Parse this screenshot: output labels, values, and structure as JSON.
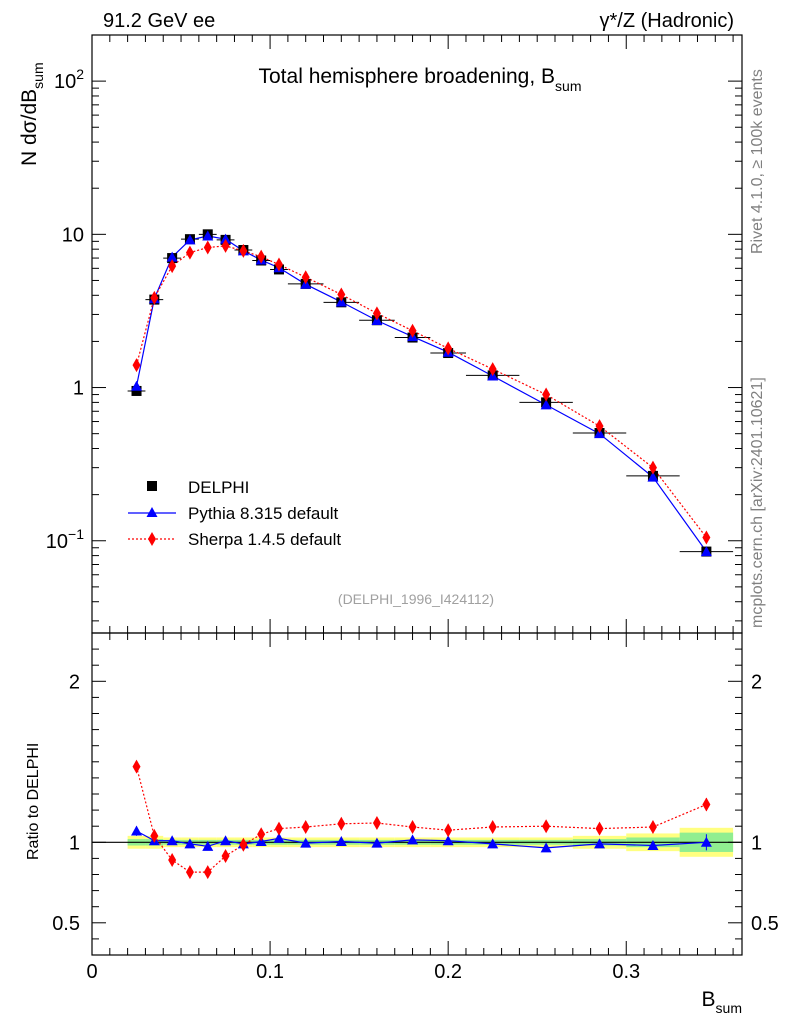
{
  "header": {
    "energy_label": "91.2 GeV ee",
    "process_label": "γ*/Z (Hadronic)"
  },
  "side_labels": {
    "rivet": "Rivet 4.1.0, ≥ 100k events",
    "source": "mcplots.cern.ch [arXiv:2401.10621]"
  },
  "colors": {
    "data": "#000000",
    "pythia": "#0000ff",
    "sherpa": "#ff0000",
    "band_inner": "#90ee90",
    "band_outer": "#ffff80"
  },
  "chart_data": [
    {
      "type": "scatter",
      "scale": "log",
      "title": "Total hemisphere broadening, B",
      "title_subscript": "sum",
      "ylabel": "N  dσ/dB",
      "ylabel_subscript": "sum",
      "analysis_id": "(DELPHI_1996_I424112)",
      "xlim": [
        0,
        0.365
      ],
      "ylim": [
        0.025,
        200
      ],
      "y_ticks": [
        {
          "value": 100,
          "label": "10",
          "sup": "2"
        },
        {
          "value": 10,
          "label": "10",
          "sup": ""
        },
        {
          "value": 1,
          "label": "1",
          "sup": ""
        },
        {
          "value": 0.1,
          "label": "10",
          "sup": "−1"
        }
      ],
      "legend": [
        "DELPHI",
        "Pythia 8.315 default",
        "Sherpa 1.4.5 default"
      ],
      "x": [
        0.025,
        0.035,
        0.045,
        0.055,
        0.065,
        0.075,
        0.085,
        0.095,
        0.105,
        0.12,
        0.14,
        0.16,
        0.18,
        0.2,
        0.225,
        0.255,
        0.285,
        0.315,
        0.345
      ],
      "xerr": [
        0.005,
        0.005,
        0.005,
        0.005,
        0.005,
        0.005,
        0.005,
        0.005,
        0.005,
        0.01,
        0.01,
        0.01,
        0.01,
        0.01,
        0.015,
        0.015,
        0.015,
        0.015,
        0.015
      ],
      "series": [
        {
          "name": "DELPHI",
          "marker": "square",
          "values": [
            0.95,
            3.75,
            7.0,
            9.3,
            10.0,
            9.2,
            7.9,
            6.75,
            5.9,
            4.75,
            3.6,
            2.75,
            2.12,
            1.68,
            1.2,
            0.8,
            0.505,
            0.265,
            0.085
          ]
        },
        {
          "name": "Pythia 8.315 default",
          "marker": "triangle",
          "values": [
            1.02,
            3.8,
            7.1,
            9.2,
            9.75,
            9.3,
            7.8,
            6.8,
            6.05,
            4.72,
            3.62,
            2.74,
            2.15,
            1.7,
            1.19,
            0.77,
            0.5,
            0.26,
            0.085
          ]
        },
        {
          "name": "Sherpa 1.4.5 default",
          "marker": "diamond",
          "values": [
            1.4,
            3.85,
            6.2,
            7.6,
            8.2,
            8.4,
            7.8,
            7.15,
            6.35,
            5.25,
            4.05,
            3.05,
            2.35,
            1.8,
            1.32,
            0.9,
            0.56,
            0.3,
            0.105
          ]
        }
      ]
    },
    {
      "type": "scatter",
      "scale": "linear",
      "ylabel": "Ratio to DELPHI",
      "xlabel": "B",
      "xlabel_subscript": "sum",
      "xlim": [
        0,
        0.365
      ],
      "ylim": [
        0.3,
        2.3
      ],
      "reference": 1,
      "y_ticks": [
        {
          "value": 2,
          "label": "2"
        },
        {
          "value": 1,
          "label": "1"
        },
        {
          "value": 0.5,
          "label": "0.5"
        }
      ],
      "x_ticks": [
        {
          "value": 0,
          "label": "0"
        },
        {
          "value": 0.1,
          "label": "0.1"
        },
        {
          "value": 0.2,
          "label": "0.2"
        },
        {
          "value": 0.3,
          "label": "0.3"
        }
      ],
      "x": [
        0.025,
        0.035,
        0.045,
        0.055,
        0.065,
        0.075,
        0.085,
        0.095,
        0.105,
        0.12,
        0.14,
        0.16,
        0.18,
        0.2,
        0.225,
        0.255,
        0.285,
        0.315,
        0.345
      ],
      "band_inner": [
        0.02,
        0.02,
        0.015,
        0.015,
        0.015,
        0.015,
        0.015,
        0.015,
        0.015,
        0.015,
        0.015,
        0.015,
        0.015,
        0.015,
        0.015,
        0.015,
        0.02,
        0.03,
        0.06
      ],
      "band_outer": [
        0.04,
        0.04,
        0.03,
        0.03,
        0.03,
        0.03,
        0.03,
        0.03,
        0.03,
        0.03,
        0.03,
        0.03,
        0.03,
        0.03,
        0.03,
        0.03,
        0.04,
        0.055,
        0.09
      ],
      "series": [
        {
          "name": "Pythia 8.315 default",
          "marker": "triangle",
          "values": [
            1.07,
            1.01,
            1.01,
            0.99,
            0.975,
            1.01,
            0.99,
            1.005,
            1.025,
            0.995,
            1.005,
            0.995,
            1.015,
            1.01,
            0.99,
            0.965,
            0.99,
            0.98,
            1.0
          ],
          "errors": [
            0.03,
            0.01,
            0.01,
            0.01,
            0.01,
            0.01,
            0.01,
            0.01,
            0.01,
            0.01,
            0.01,
            0.01,
            0.01,
            0.01,
            0.01,
            0.01,
            0.015,
            0.025,
            0.05
          ]
        },
        {
          "name": "Sherpa 1.4.5 default",
          "marker": "diamond",
          "values": [
            1.47,
            1.04,
            0.89,
            0.815,
            0.815,
            0.915,
            0.985,
            1.05,
            1.085,
            1.095,
            1.115,
            1.12,
            1.095,
            1.075,
            1.095,
            1.1,
            1.085,
            1.095,
            1.235
          ],
          "errors": [
            0.02,
            0.01,
            0.01,
            0.01,
            0.01,
            0.01,
            0.01,
            0.01,
            0.01,
            0.01,
            0.01,
            0.01,
            0.01,
            0.01,
            0.01,
            0.01,
            0.015,
            0.02,
            0.04
          ]
        }
      ]
    }
  ]
}
